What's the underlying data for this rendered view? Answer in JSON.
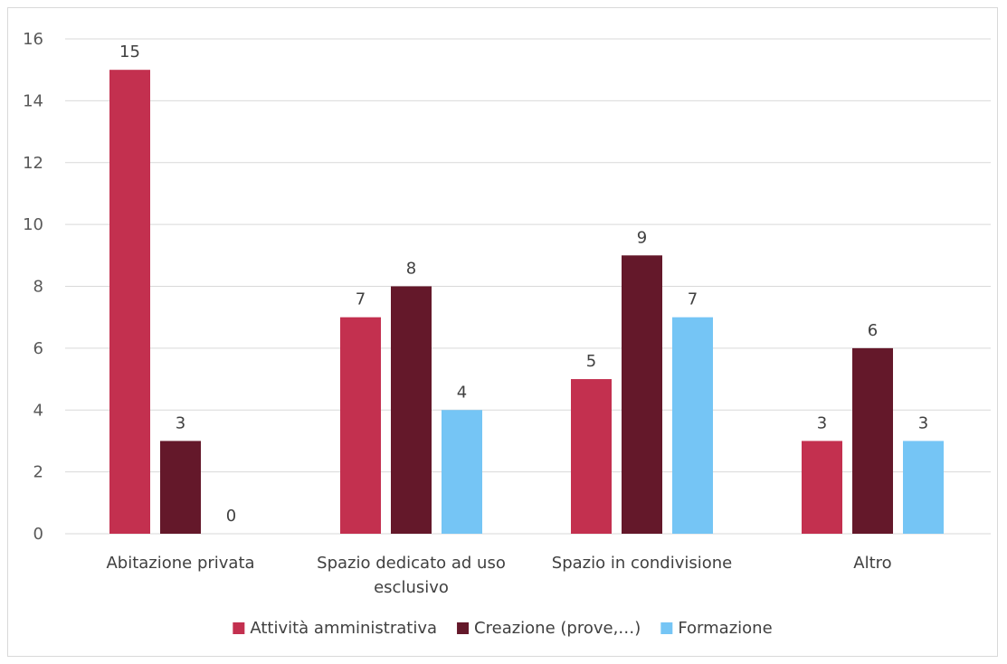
{
  "chart_data": {
    "type": "bar",
    "categories": [
      [
        "Abitazione privata"
      ],
      [
        "Spazio dedicato ad uso",
        "esclusivo"
      ],
      [
        "Spazio in condivisione"
      ],
      [
        "Altro"
      ]
    ],
    "series": [
      {
        "name": "Attività amministrativa",
        "color": "#c3304f",
        "values": [
          15,
          7,
          5,
          3
        ]
      },
      {
        "name": "Creazione (prove,…)",
        "color": "#64182a",
        "values": [
          3,
          8,
          9,
          6
        ]
      },
      {
        "name": "Formazione",
        "color": "#75c5f5",
        "values": [
          0,
          4,
          7,
          3
        ]
      }
    ],
    "yticks": [
      "0",
      "2",
      "4",
      "6",
      "8",
      "10",
      "12",
      "14",
      "16"
    ],
    "ylim": [
      0,
      16
    ],
    "grid": true,
    "legend_position": "bottom"
  }
}
